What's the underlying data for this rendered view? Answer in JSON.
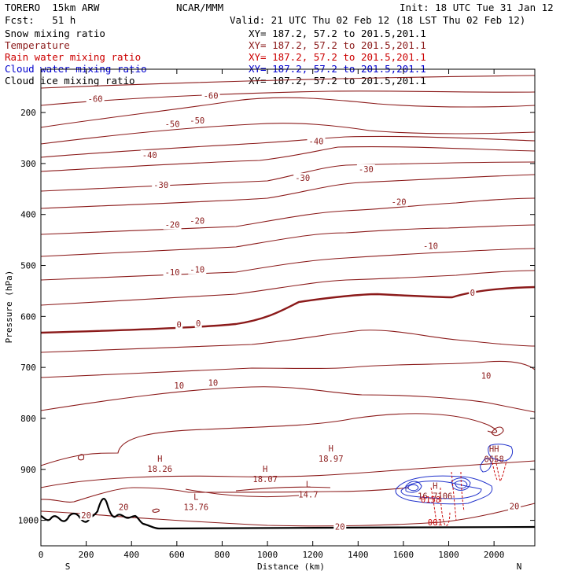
{
  "header": {
    "model": "TORERO  15km ARW",
    "org": "NCAR/MMM",
    "init": "Init: 18 UTC Tue 31 Jan 12",
    "fcst": "Fcst:   51 h",
    "valid": "Valid: 21 UTC Thu 02 Feb 12 (18 LST Thu 02 Feb 12)"
  },
  "legend": [
    {
      "name": "Snow mixing ratio",
      "xy": "XY= 187.2, 57.2 to 201.5,201.1",
      "color": "#000000"
    },
    {
      "name": "Temperature",
      "xy": "XY= 187.2, 57.2 to 201.5,201.1",
      "color": "#8b1a1a"
    },
    {
      "name": "Rain water mixing ratio",
      "xy": "XY= 187.2, 57.2 to 201.5,201.1",
      "color": "#cc0000"
    },
    {
      "name": "Cloud water mixing ratio",
      "xy": "XY= 187.2, 57.2 to 201.5,201.1",
      "color": "#0000cc"
    },
    {
      "name": "Cloud ice mixing ratio",
      "xy": "XY= 187.2, 57.2 to 201.5,201.1",
      "color": "#000000"
    }
  ],
  "chart_data": {
    "type": "contour-cross-section",
    "xlabel": "Distance (km)",
    "ylabel": "Pressure (hPa)",
    "xlim": [
      0,
      2180
    ],
    "ylim_hPa": [
      1050,
      115
    ],
    "x_ticks": [
      0,
      200,
      400,
      600,
      800,
      1000,
      1200,
      1400,
      1600,
      1800,
      2000
    ],
    "y_ticks": [
      200,
      300,
      400,
      500,
      600,
      700,
      800,
      900,
      1000
    ],
    "direction_left": "S",
    "direction_right": "N",
    "contour_labels": [
      {
        "text": "-60",
        "x": 240,
        "p": 173
      },
      {
        "text": "-60",
        "x": 750,
        "p": 167
      },
      {
        "text": "-50",
        "x": 580,
        "p": 222
      },
      {
        "text": "-50",
        "x": 690,
        "p": 215
      },
      {
        "text": "-40",
        "x": 480,
        "p": 283
      },
      {
        "text": "-40",
        "x": 1215,
        "p": 256
      },
      {
        "text": "-30",
        "x": 530,
        "p": 342
      },
      {
        "text": "-30",
        "x": 1155,
        "p": 328
      },
      {
        "text": "-30",
        "x": 1435,
        "p": 311
      },
      {
        "text": "-20",
        "x": 580,
        "p": 420
      },
      {
        "text": "-20",
        "x": 690,
        "p": 412
      },
      {
        "text": "-20",
        "x": 1580,
        "p": 375
      },
      {
        "text": "-10",
        "x": 580,
        "p": 513
      },
      {
        "text": "-10",
        "x": 690,
        "p": 508
      },
      {
        "text": "-10",
        "x": 1720,
        "p": 461
      },
      {
        "text": "0",
        "x": 610,
        "p": 616
      },
      {
        "text": "0",
        "x": 695,
        "p": 613
      },
      {
        "text": "0",
        "x": 1905,
        "p": 553
      },
      {
        "text": "10",
        "x": 610,
        "p": 735
      },
      {
        "text": "10",
        "x": 760,
        "p": 730
      },
      {
        "text": "10",
        "x": 1965,
        "p": 716
      },
      {
        "text": "20",
        "x": 365,
        "p": 974
      },
      {
        "text": "20",
        "x": 200,
        "p": 990
      },
      {
        "text": "20",
        "x": 1320,
        "p": 1012
      },
      {
        "text": "20",
        "x": 2090,
        "p": 972
      }
    ],
    "extrema": [
      {
        "type": "H",
        "value": "18.26",
        "x": 525,
        "p": 885
      },
      {
        "type": "H",
        "value": "18.07",
        "x": 990,
        "p": 905
      },
      {
        "type": "L",
        "value": "13.76",
        "x": 685,
        "p": 960
      },
      {
        "type": "L",
        "value": "14.7",
        "x": 1180,
        "p": 935
      },
      {
        "type": "H",
        "value": "18.97",
        "x": 1280,
        "p": 865
      },
      {
        "type": "H",
        "value": "16.7106",
        "x": 1740,
        "p": 938
      },
      {
        "type": "HH",
        "value": "0658",
        "x": 2000,
        "p": 866
      }
    ],
    "small_labels": [
      {
        "text": "0158",
        "x": 1720,
        "p": 965
      },
      {
        "text": "001",
        "x": 1740,
        "p": 1010
      }
    ]
  }
}
